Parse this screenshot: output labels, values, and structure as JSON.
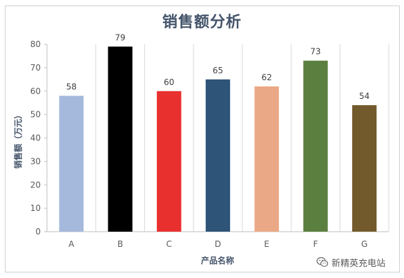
{
  "chart_data": {
    "type": "bar",
    "title": "销售额分析",
    "xlabel": "产品名称",
    "ylabel": "销售额（万元）",
    "categories": [
      "A",
      "B",
      "C",
      "D",
      "E",
      "F",
      "G"
    ],
    "values": [
      58,
      79,
      60,
      65,
      62,
      73,
      54
    ],
    "colors": [
      "#a5b9dc",
      "#000000",
      "#e8302e",
      "#2e5478",
      "#eba886",
      "#5b7f3f",
      "#735a2c"
    ],
    "ylim": [
      0,
      80
    ],
    "yticks": [
      0,
      10,
      20,
      30,
      40,
      50,
      60,
      70,
      80
    ],
    "grid": "vertical separators between categories",
    "legend": "none"
  },
  "watermark": {
    "text": "新精英充电站",
    "icon": "wechat-icon"
  }
}
